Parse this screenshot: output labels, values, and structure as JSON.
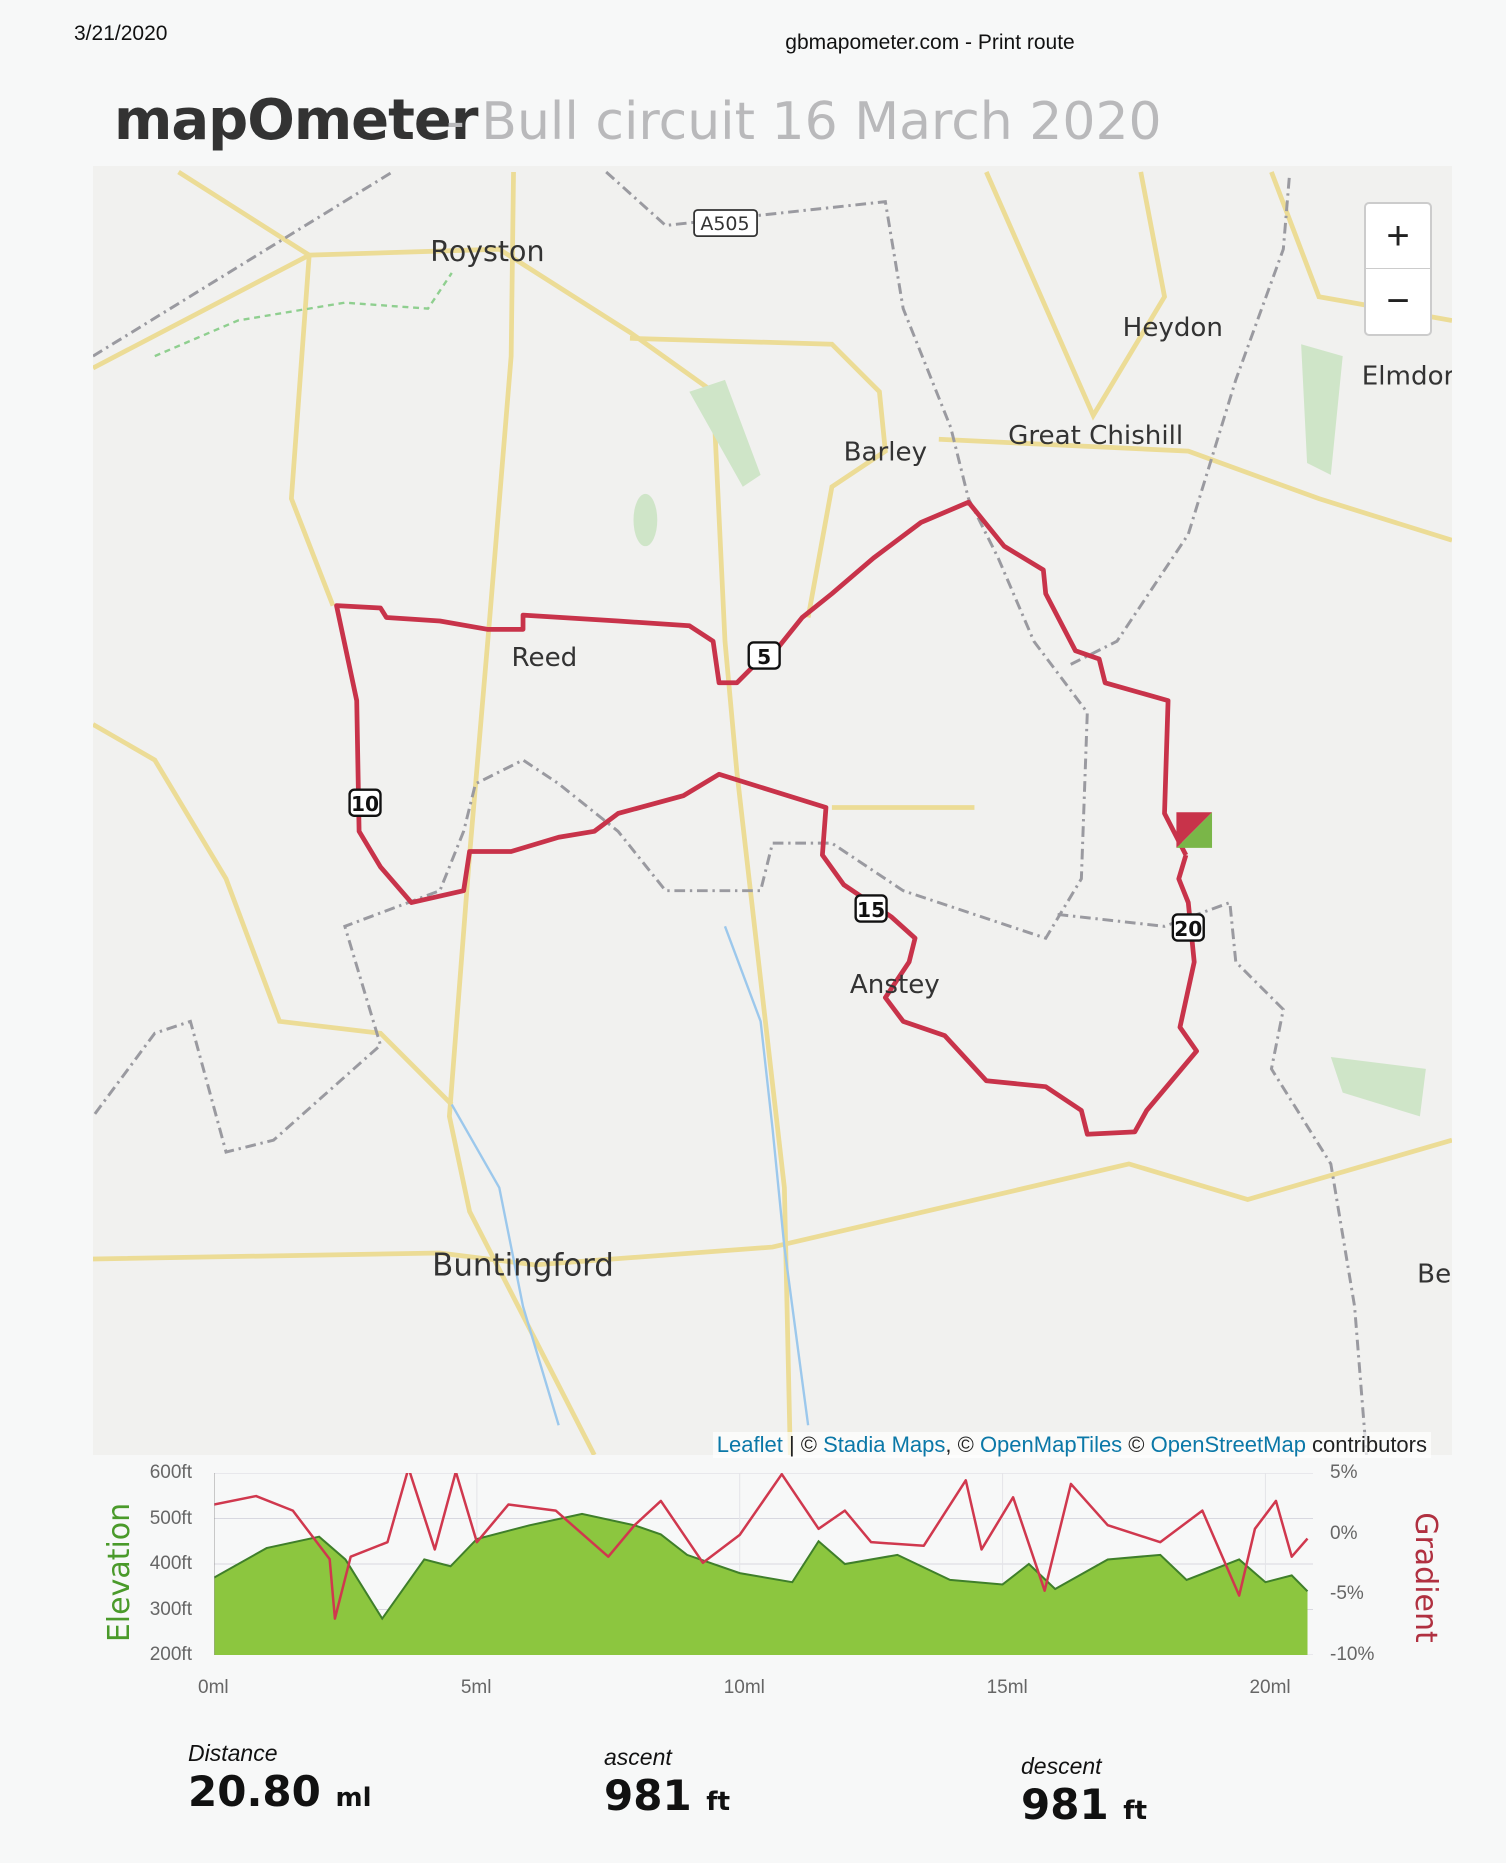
{
  "print_header": {
    "date": "3/21/2020",
    "source": "gbmapometer.com - Print route"
  },
  "logo": {
    "text": "mapOmeter"
  },
  "route_title": "- Bull circuit 16 March 2020",
  "map": {
    "places": [
      "Royston",
      "Heydon",
      "Elmdor",
      "Barley",
      "Great Chishill",
      "Reed",
      "Anstey",
      "Buntingford",
      "Be"
    ],
    "road_shield": "A505",
    "mile_markers": [
      "5",
      "10",
      "15",
      "20"
    ],
    "zoom_in": "+",
    "zoom_out": "−",
    "route_color": "#c8334a",
    "start_color": "#c8334a",
    "finish_color": "#7ab648",
    "attribution": {
      "leaflet": "Leaflet",
      "sep": " | © ",
      "stadia": "Stadia Maps",
      "c2": ", © ",
      "omt": "OpenMapTiles",
      "c3": " © ",
      "osm": "OpenStreetMap",
      "tail": " contributors"
    }
  },
  "chart_data": {
    "type": "area",
    "xlabel": "",
    "left_ylabel": "Elevation",
    "right_ylabel": "Gradient",
    "xlim": [
      0,
      20.8
    ],
    "x_ticks": [
      "0ml",
      "5ml",
      "10ml",
      "15ml",
      "20ml"
    ],
    "left_ylim": [
      200,
      600
    ],
    "left_ticks": [
      "600ft",
      "500ft",
      "400ft",
      "300ft",
      "200ft"
    ],
    "right_ylim": [
      -10,
      5
    ],
    "right_ticks": [
      "5%",
      "0%",
      "-5%",
      "-10%"
    ],
    "series": [
      {
        "name": "Elevation",
        "color": "#8cc63f",
        "x": [
          0,
          1,
          2,
          2.5,
          3.2,
          4,
          4.5,
          5,
          6,
          7,
          8,
          8.5,
          9,
          10,
          11,
          11.5,
          12,
          13,
          14,
          15,
          15.5,
          16,
          17,
          18,
          18.5,
          19.5,
          20,
          20.5,
          20.8
        ],
        "y": [
          370,
          435,
          460,
          410,
          280,
          410,
          395,
          455,
          485,
          510,
          485,
          465,
          420,
          380,
          360,
          450,
          400,
          420,
          365,
          355,
          400,
          345,
          410,
          420,
          365,
          410,
          360,
          375,
          340
        ]
      },
      {
        "name": "Gradient",
        "color": "#d0384e",
        "x": [
          0,
          0.8,
          1.5,
          2.2,
          2.3,
          2.6,
          3.3,
          3.7,
          4.2,
          4.6,
          5,
          5.6,
          6.5,
          7.5,
          8,
          8.5,
          9.3,
          10,
          10.8,
          11.5,
          12,
          12.5,
          13.5,
          14.3,
          14.6,
          15.2,
          15.8,
          16.3,
          17,
          18,
          18.8,
          19.5,
          19.8,
          20.2,
          20.5,
          20.8
        ],
        "y": [
          2.4,
          3.1,
          1.9,
          -2.1,
          -7,
          -1.9,
          -0.7,
          5.4,
          -1.3,
          5.1,
          -0.7,
          2.4,
          1.9,
          -1.9,
          0.7,
          2.7,
          -2.4,
          -0.1,
          4.9,
          0.4,
          1.9,
          -0.7,
          -1,
          4.4,
          -1.3,
          3,
          -4.7,
          4.1,
          0.7,
          -0.7,
          1.9,
          -5.1,
          0.4,
          2.7,
          -1.9,
          -0.4
        ]
      }
    ]
  },
  "stats": {
    "distance": {
      "label": "Distance",
      "value": "20.80",
      "unit": "ml"
    },
    "ascent": {
      "label": "ascent",
      "value": "981",
      "unit": "ft"
    },
    "descent": {
      "label": "descent",
      "value": "981",
      "unit": "ft"
    }
  }
}
